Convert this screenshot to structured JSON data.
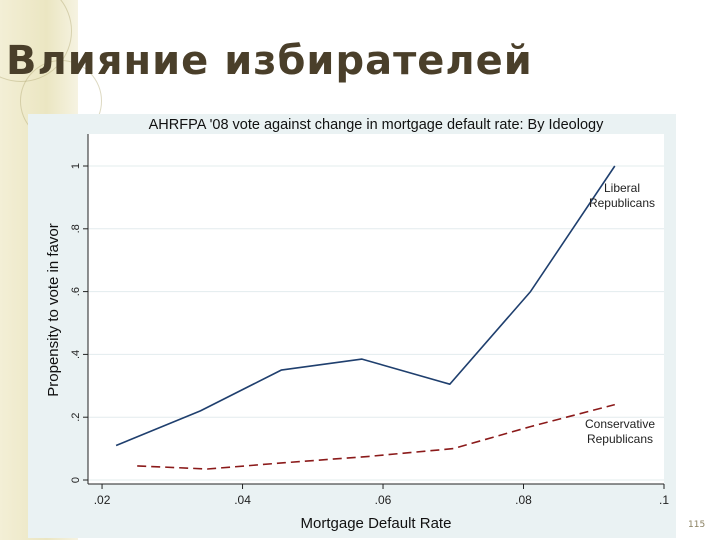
{
  "slide": {
    "title": "Влияние избирателей",
    "page_number": "115"
  },
  "chart_data": {
    "type": "line",
    "title": "AHRFPA '08 vote against change in mortgage default rate: By Ideology",
    "xlabel": "Mortgage Default Rate",
    "ylabel": "Propensity to vote in favor",
    "xlim": [
      0.018,
      0.1
    ],
    "ylim": [
      0,
      1
    ],
    "x_ticks": [
      ".02",
      ".04",
      ".06",
      ".08",
      ".1"
    ],
    "y_ticks": [
      "0",
      ".2",
      ".4",
      ".6",
      ".8",
      "1"
    ],
    "grid": true,
    "legend": "inline-labels",
    "series": [
      {
        "name": "Liberal Republicans",
        "style": "solid",
        "color": "#1f3f6e",
        "x": [
          0.022,
          0.034,
          0.0455,
          0.057,
          0.0695,
          0.081,
          0.093
        ],
        "y": [
          0.11,
          0.22,
          0.35,
          0.385,
          0.305,
          0.6,
          1.0
        ]
      },
      {
        "name": "Conservative Republicans",
        "style": "dashed",
        "color": "#8b1a1a",
        "x": [
          0.025,
          0.035,
          0.046,
          0.058,
          0.07,
          0.081,
          0.093
        ],
        "y": [
          0.045,
          0.035,
          0.055,
          0.075,
          0.1,
          0.17,
          0.24
        ]
      }
    ]
  }
}
